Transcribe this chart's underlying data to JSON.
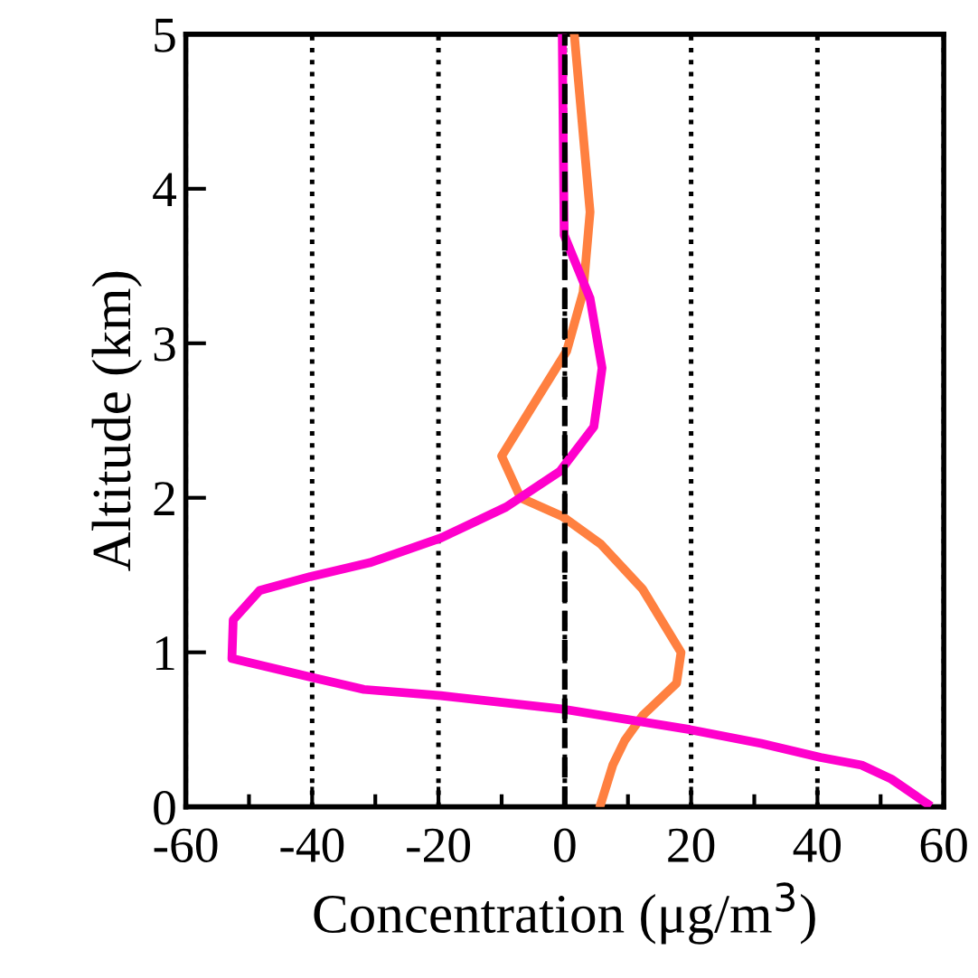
{
  "chart_data": {
    "type": "line",
    "xlabel": "Concentration (μg/m$^{3}$)",
    "ylabel": "Altitude (km)",
    "xlim": [
      -60,
      60
    ],
    "ylim": [
      0,
      5
    ],
    "xticks": [
      -60,
      {
        "value": -50,
        "label": null
      },
      -40,
      {
        "value": -30,
        "label": null
      },
      -20,
      {
        "value": -10,
        "label": null
      },
      0,
      {
        "value": 10,
        "label": null
      },
      20,
      {
        "value": 30,
        "label": null
      },
      40,
      {
        "value": 50,
        "label": null
      },
      60
    ],
    "yticks": [
      0,
      1,
      2,
      3,
      4,
      5
    ],
    "grid": "x",
    "line_style": "solid",
    "marker": "none",
    "ref_lines": [
      {
        "axis": "x",
        "value": 0,
        "line_style": "dashed",
        "color": "#000000"
      }
    ],
    "series": [
      {
        "color": "#ff8040",
        "x": [
          1.5,
          4.0,
          2.9,
          0.3,
          -4.1,
          -10,
          -7,
          -0.4,
          5.7,
          12.3,
          18.4,
          17.7,
          12.3,
          9.5,
          7.6,
          5.7
        ],
        "values": [
          5.0,
          3.85,
          3.33,
          2.95,
          2.66,
          2.27,
          2.0,
          1.88,
          1.7,
          1.41,
          1.0,
          0.8,
          0.59,
          0.43,
          0.27,
          0.02
        ]
      },
      {
        "color": "#ff00cc",
        "x": [
          -0.4,
          -0.1,
          4.0,
          5.9,
          5.3,
          4.6,
          -0.8,
          -9.3,
          -19.6,
          -30.9,
          -40.3,
          -48.3,
          -52.5,
          -52.7,
          -40.3,
          -31.8,
          -19.6,
          0.1,
          19.8,
          31.1,
          40.5,
          47,
          51.7,
          57.4
        ],
        "values": [
          5.0,
          3.7,
          3.29,
          2.84,
          2.66,
          2.46,
          2.17,
          1.94,
          1.74,
          1.58,
          1.49,
          1.4,
          1.21,
          0.96,
          0.84,
          0.76,
          0.72,
          0.63,
          0.5,
          0.41,
          0.32,
          0.27,
          0.18,
          0.02
        ]
      }
    ]
  }
}
